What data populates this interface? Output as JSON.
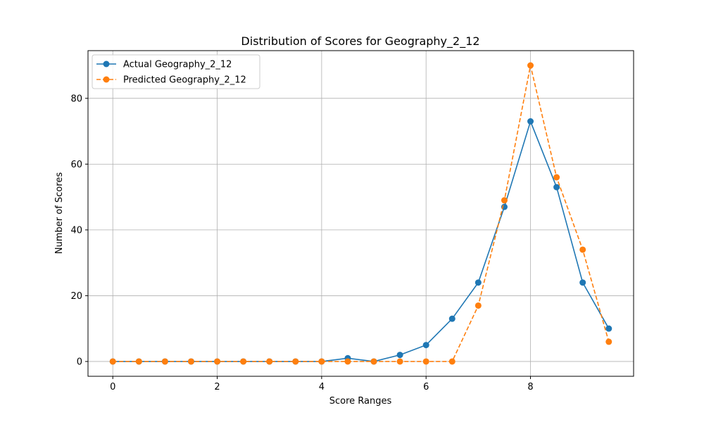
{
  "chart_data": {
    "type": "line",
    "title": "Distribution of Scores for Geography_2_12",
    "xlabel": "Score Ranges",
    "ylabel": "Number of Scores",
    "xlim": [
      -0.475,
      9.975
    ],
    "ylim": [
      -4.5,
      94.5
    ],
    "xticks": [
      0,
      2,
      4,
      6,
      8
    ],
    "yticks": [
      0,
      20,
      40,
      60,
      80
    ],
    "grid": true,
    "legend_position": "upper-left",
    "x": [
      0,
      0.5,
      1,
      1.5,
      2,
      2.5,
      3,
      3.5,
      4,
      4.5,
      5,
      5.5,
      6,
      6.5,
      7,
      7.5,
      8,
      8.5,
      9,
      9.5
    ],
    "series": [
      {
        "name": "Actual Geography_2_12",
        "color": "#1f77b4",
        "line_style": "solid",
        "marker": "circle",
        "values": [
          0,
          0,
          0,
          0,
          0,
          0,
          0,
          0,
          0,
          1,
          0,
          2,
          5,
          13,
          24,
          47,
          73,
          53,
          24,
          10
        ]
      },
      {
        "name": "Predicted Geography_2_12",
        "color": "#ff7f0e",
        "line_style": "dashed",
        "marker": "circle",
        "values": [
          0,
          0,
          0,
          0,
          0,
          0,
          0,
          0,
          0,
          0,
          0,
          0,
          0,
          0,
          17,
          49,
          90,
          56,
          34,
          6
        ]
      }
    ]
  }
}
